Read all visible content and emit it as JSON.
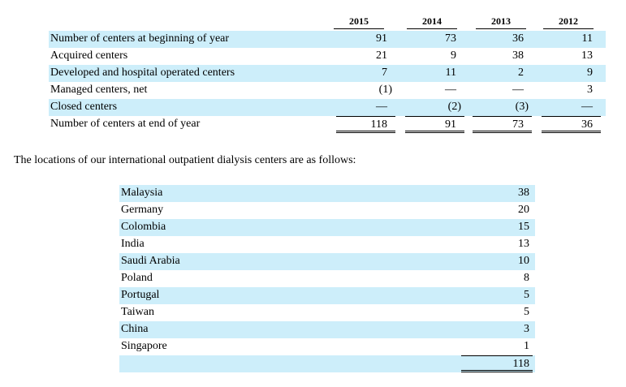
{
  "centers_table": {
    "years": [
      "2015",
      "2014",
      "2013",
      "2012"
    ],
    "rows": [
      {
        "label": "Number of centers at beginning of year",
        "values": [
          "91",
          "73",
          "36",
          "11"
        ]
      },
      {
        "label": "Acquired centers",
        "values": [
          "21",
          "9",
          "38",
          "13"
        ]
      },
      {
        "label": "Developed and hospital operated centers",
        "values": [
          "7",
          "11",
          "2",
          "9"
        ]
      },
      {
        "label": "Managed centers, net",
        "values": [
          "(1)",
          "—",
          "—",
          "3"
        ]
      },
      {
        "label": "Closed centers",
        "values": [
          "—",
          "(2)",
          "(3)",
          "—"
        ]
      },
      {
        "label": "Number of centers at end of year",
        "values": [
          "118",
          "91",
          "73",
          "36"
        ]
      }
    ]
  },
  "intro_text": "The locations of our international outpatient dialysis centers are as follows:",
  "locations_table": {
    "rows": [
      {
        "label": "Malaysia",
        "value": "38"
      },
      {
        "label": "Germany",
        "value": "20"
      },
      {
        "label": "Colombia",
        "value": "15"
      },
      {
        "label": "India",
        "value": "13"
      },
      {
        "label": "Saudi Arabia",
        "value": "10"
      },
      {
        "label": "Poland",
        "value": "8"
      },
      {
        "label": "Portugal",
        "value": "5"
      },
      {
        "label": "Taiwan",
        "value": "5"
      },
      {
        "label": "China",
        "value": "3"
      },
      {
        "label": "Singapore",
        "value": "1"
      }
    ],
    "total": "118"
  }
}
